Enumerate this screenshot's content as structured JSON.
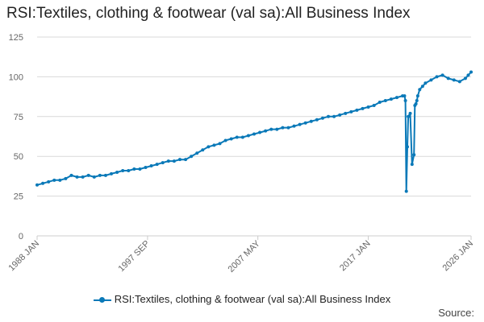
{
  "header": {
    "title": "RSI:Textiles, clothing & footwear (val sa):All Business Index"
  },
  "footer": {
    "source_label": "Source:"
  },
  "colors": {
    "series": "#0a79b8",
    "grid": "#d9d9d9",
    "axis": "#cccccc"
  },
  "chart_data": {
    "type": "line",
    "title": "RSI:Textiles, clothing & footwear (val sa):All Business Index",
    "xlabel": "",
    "ylabel": "",
    "ylim": [
      0,
      125
    ],
    "yticks": [
      0,
      25,
      50,
      75,
      100,
      125
    ],
    "xlim": [
      1988.0,
      2026.0
    ],
    "xticks": [
      {
        "label": "1988 JAN",
        "value": 1988.0
      },
      {
        "label": "1997 SEP",
        "value": 1997.67
      },
      {
        "label": "2007 MAY",
        "value": 2007.33
      },
      {
        "label": "2017 JAN",
        "value": 2017.0
      },
      {
        "label": "2026 JAN",
        "value": 2026.0
      }
    ],
    "grid": true,
    "legend": "bottom",
    "series": [
      {
        "name": "RSI:Textiles, clothing & footwear (val sa):All Business Index",
        "x": [
          1988.0,
          1988.5,
          1989.0,
          1989.5,
          1990.0,
          1990.5,
          1991.0,
          1991.5,
          1992.0,
          1992.5,
          1993.0,
          1993.5,
          1994.0,
          1994.5,
          1995.0,
          1995.5,
          1996.0,
          1996.5,
          1997.0,
          1997.5,
          1998.0,
          1998.5,
          1999.0,
          1999.5,
          2000.0,
          2000.5,
          2001.0,
          2001.5,
          2002.0,
          2002.5,
          2003.0,
          2003.5,
          2004.0,
          2004.5,
          2005.0,
          2005.5,
          2006.0,
          2006.5,
          2007.0,
          2007.5,
          2008.0,
          2008.5,
          2009.0,
          2009.5,
          2010.0,
          2010.5,
          2011.0,
          2011.5,
          2012.0,
          2012.5,
          2013.0,
          2013.5,
          2014.0,
          2014.5,
          2015.0,
          2015.5,
          2016.0,
          2016.5,
          2017.0,
          2017.5,
          2018.0,
          2018.5,
          2019.0,
          2019.5,
          2020.0,
          2020.17,
          2020.25,
          2020.33,
          2020.42,
          2020.5,
          2020.67,
          2020.83,
          2021.0,
          2021.08,
          2021.17,
          2021.25,
          2021.33,
          2021.5,
          2021.75,
          2022.0,
          2022.5,
          2023.0,
          2023.5,
          2024.0,
          2024.5,
          2025.0,
          2025.5,
          2025.75,
          2026.0
        ],
        "values": [
          32,
          33,
          34,
          35,
          35,
          36,
          38,
          37,
          37,
          38,
          37,
          38,
          38,
          39,
          40,
          41,
          41,
          42,
          42,
          43,
          44,
          45,
          46,
          47,
          47,
          48,
          48,
          50,
          52,
          54,
          56,
          57,
          58,
          60,
          61,
          62,
          62,
          63,
          64,
          65,
          66,
          67,
          67,
          68,
          68,
          69,
          70,
          71,
          72,
          73,
          74,
          75,
          75,
          76,
          77,
          78,
          79,
          80,
          81,
          82,
          84,
          85,
          86,
          87,
          88,
          88,
          85,
          28,
          56,
          75,
          77,
          45,
          51,
          82,
          83,
          85,
          88,
          92,
          94,
          96,
          98,
          100,
          101,
          99,
          98,
          97,
          99,
          101,
          103
        ]
      }
    ]
  }
}
